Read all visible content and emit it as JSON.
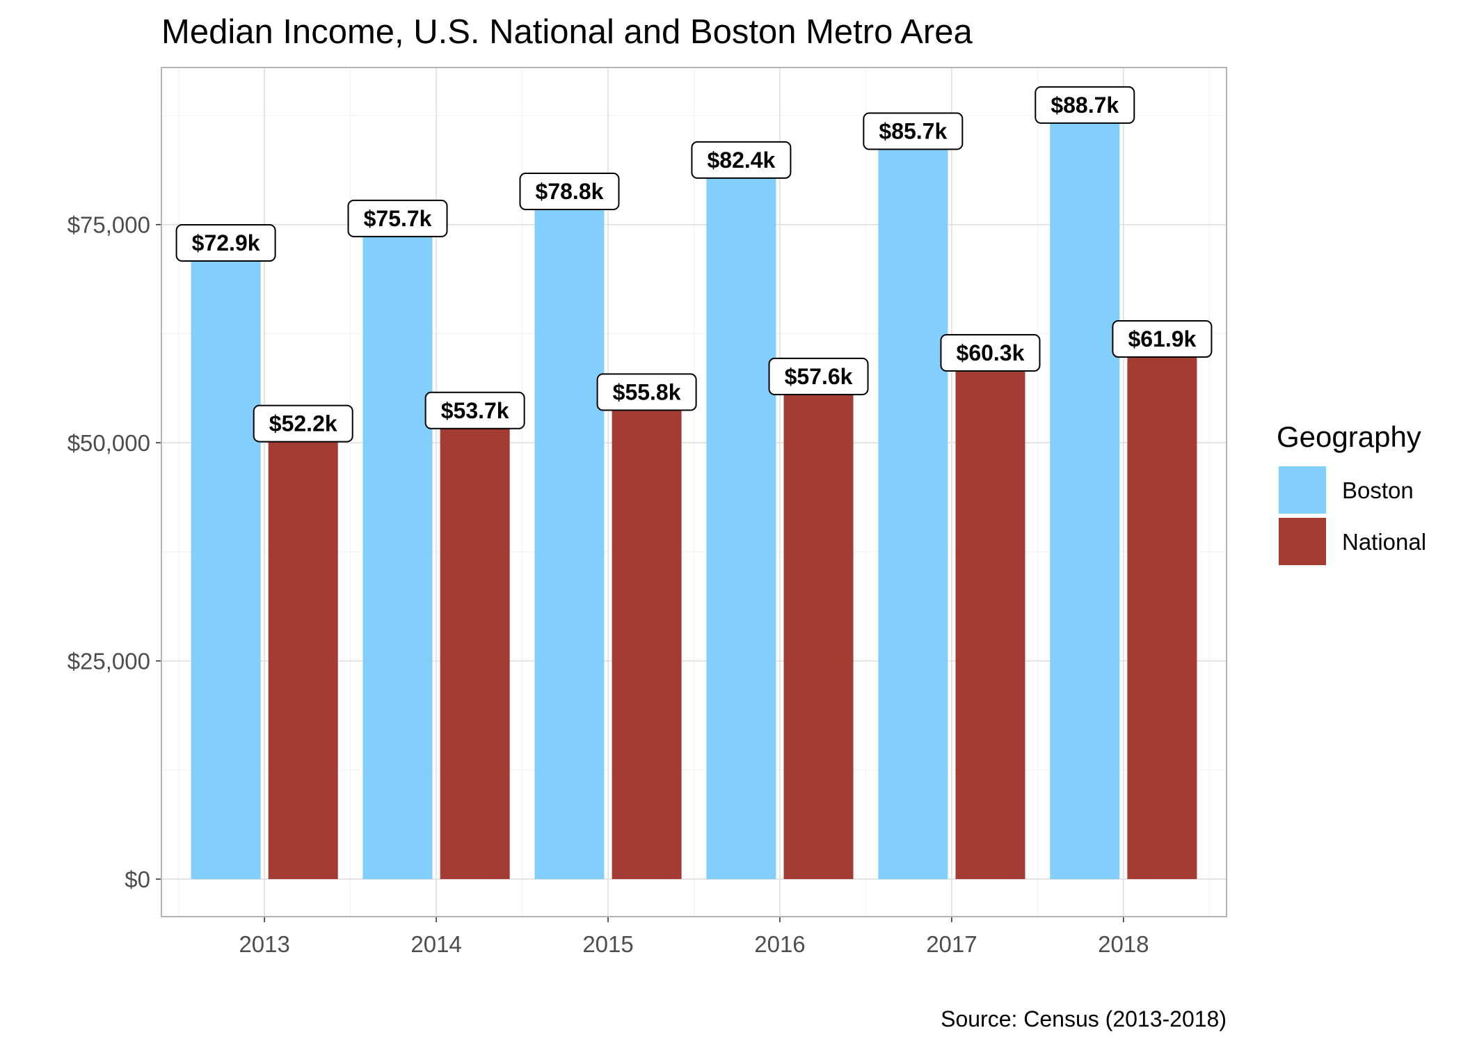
{
  "chart_data": {
    "type": "bar",
    "title": "Median Income, U.S. National and Boston Metro Area",
    "caption": "Source: Census (2013-2018)",
    "xlabel": "",
    "ylabel": "",
    "categories": [
      "2013",
      "2014",
      "2015",
      "2016",
      "2017",
      "2018"
    ],
    "series": [
      {
        "name": "Boston",
        "color": "#82cffd",
        "values": [
          72900,
          75700,
          78800,
          82400,
          85700,
          88700
        ],
        "labels": [
          "$72.9k",
          "$75.7k",
          "$78.8k",
          "$82.4k",
          "$85.7k",
          "$88.7k"
        ]
      },
      {
        "name": "National",
        "color": "#a33c33",
        "values": [
          52200,
          53700,
          55800,
          57600,
          60300,
          61900
        ],
        "labels": [
          "$52.2k",
          "$53.7k",
          "$55.8k",
          "$57.6k",
          "$60.3k",
          "$61.9k"
        ]
      }
    ],
    "y_ticks": [
      0,
      25000,
      50000,
      75000
    ],
    "y_tick_labels": [
      "$0",
      "$25,000",
      "$50,000",
      "$75,000"
    ],
    "ylim": [
      -4300,
      93000
    ],
    "grid": true,
    "legend": {
      "title": "Geography",
      "position": "right"
    }
  }
}
